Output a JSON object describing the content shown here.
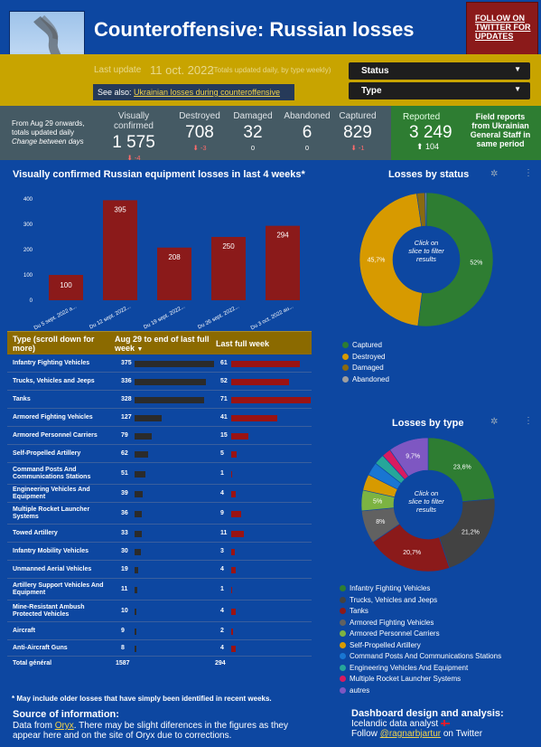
{
  "header": {
    "title": "Counteroffensive: Russian losses",
    "twitter_button": "FOLLOW ON TWITTER FOR UPDATES",
    "last_update_label": "Last update",
    "last_update_date": "11 oct. 2022",
    "last_update_note": "(Totals updated daily, by type weekly)",
    "see_also_label": "See also:",
    "see_also_link": "Ukrainian losses during counteroffensive",
    "status_filter": "Status",
    "type_filter": "Type"
  },
  "kpis": {
    "description_line1": "From Aug 29 onwards,",
    "description_line2": "totals updated daily",
    "description_line3": "Change between days",
    "items": [
      {
        "label": "Visually confirmed",
        "value": "1 575",
        "change": "-4"
      },
      {
        "label": "Destroyed",
        "value": "708",
        "change": "-3"
      },
      {
        "label": "Damaged",
        "value": "32",
        "change": "0"
      },
      {
        "label": "Abandoned",
        "value": "6",
        "change": "0"
      },
      {
        "label": "Captured",
        "value": "829",
        "change": "-1"
      }
    ],
    "reported": {
      "label": "Reported",
      "value": "3 249",
      "change": "104",
      "note": "Field reports from Ukrainian General Staff in same period"
    }
  },
  "bar_section": {
    "title": "Visually confirmed Russian equipment losses in last 4 weeks*"
  },
  "chart_data": [
    {
      "type": "bar",
      "title": "Visually confirmed Russian equipment losses in last 4 weeks*",
      "categories": [
        "Du 5 sept. 2022 a...",
        "Du 12 sept. 2022...",
        "Du 19 sept. 2022...",
        "Du 26 sept. 2022...",
        "Du 3 oct. 2022 au..."
      ],
      "values": [
        100,
        395,
        208,
        250,
        294
      ],
      "ylim": [
        0,
        400
      ],
      "yticks": [
        0,
        100,
        200,
        300,
        400
      ],
      "color": "#8b1a1a"
    },
    {
      "type": "pie",
      "title": "Losses by status",
      "center_text": "Click on slice to filter results",
      "labels": [
        "Captured",
        "Destroyed",
        "Damaged",
        "Abandoned"
      ],
      "values": [
        52,
        45.7,
        2,
        0.3
      ],
      "value_labels": [
        "52%",
        "45,7%",
        "",
        ""
      ],
      "colors": [
        "#2e7d32",
        "#d79a00",
        "#8a6a10",
        "#9e9e9e"
      ]
    },
    {
      "type": "pie",
      "title": "Losses by type",
      "center_text": "Click on slice to filter results",
      "labels": [
        "Infantry Fighting Vehicles",
        "Trucks, Vehicles and Jeeps",
        "Tanks",
        "Armored Fighting Vehicles",
        "Armored Personnel Carriers",
        "Self-Propelled Artillery",
        "Command Posts And Communications Stations",
        "Engineering Vehicles And Equipment",
        "Multiple Rocket Launcher Systems",
        "autres"
      ],
      "values": [
        23.6,
        21.2,
        20.7,
        8,
        5,
        3.9,
        3.2,
        2.5,
        2.2,
        9.7
      ],
      "value_labels": [
        "23,6%",
        "21,2%",
        "20,7%",
        "8%",
        "5%",
        "",
        "",
        "",
        "",
        "9,7%"
      ],
      "colors": [
        "#2e7d32",
        "#424242",
        "#8b1a1a",
        "#616161",
        "#7cb342",
        "#d79a00",
        "#1976d2",
        "#26a69a",
        "#d81b60",
        "#7e57c2"
      ]
    },
    {
      "type": "table",
      "columns": [
        "Type (scroll down for more)",
        "Aug 29 to end of last full week",
        "Last full week"
      ],
      "rows": [
        [
          "Infantry Fighting Vehicles",
          375,
          61
        ],
        [
          "Trucks, Vehicles and Jeeps",
          336,
          52
        ],
        [
          "Tanks",
          328,
          71
        ],
        [
          "Armored Fighting Vehicles",
          127,
          41
        ],
        [
          "Armored Personnel Carriers",
          79,
          15
        ],
        [
          "Self-Propelled Artillery",
          62,
          5
        ],
        [
          "Command Posts And Communications Stations",
          51,
          1
        ],
        [
          "Engineering Vehicles And Equipment",
          39,
          4
        ],
        [
          "Multiple Rocket Launcher Systems",
          36,
          9
        ],
        [
          "Towed Artillery",
          33,
          11
        ],
        [
          "Infantry Mobility Vehicles",
          30,
          3
        ],
        [
          "Unmanned Aerial Vehicles",
          19,
          4
        ],
        [
          "Artillery Support Vehicles And Equipment",
          11,
          1
        ],
        [
          "Mine-Resistant Ambush Protected Vehicles",
          10,
          4
        ],
        [
          "Aircraft",
          9,
          2
        ],
        [
          "Anti-Aircraft Guns",
          8,
          4
        ]
      ],
      "total": [
        "Total général",
        1587,
        294
      ]
    }
  ],
  "status_section": {
    "title": "Losses by status",
    "center_text": "Click on slice to filter results"
  },
  "type_section": {
    "title": "Losses by type",
    "center_text": "Click on slice to filter results"
  },
  "table": {
    "col1": "Type (scroll down for more)",
    "col2": "Aug 29 to end of last full week",
    "col3": "Last full week",
    "sort_icon": "sort-down-icon"
  },
  "footnote": "* May include older losses that have simply been identified in recent weeks.",
  "source": {
    "title": "Source of information:",
    "text_before": "Data from ",
    "link": "Oryx",
    "text_after": ". There may be slight diferences in the figures as they appear here and on the site of Oryx due to corrections."
  },
  "credit": {
    "title": "Dashboard design and analysis:",
    "line2": "Icelandic data analyst",
    "follow": "Follow ",
    "handle": "@ragnarbjartur",
    "on": " on Twitter"
  },
  "colors": {
    "background": "#0d47a1",
    "gold": "#c8a400",
    "kpi_bar": "#455a64",
    "reported": "#2e7d32",
    "bar": "#8b1a1a"
  }
}
